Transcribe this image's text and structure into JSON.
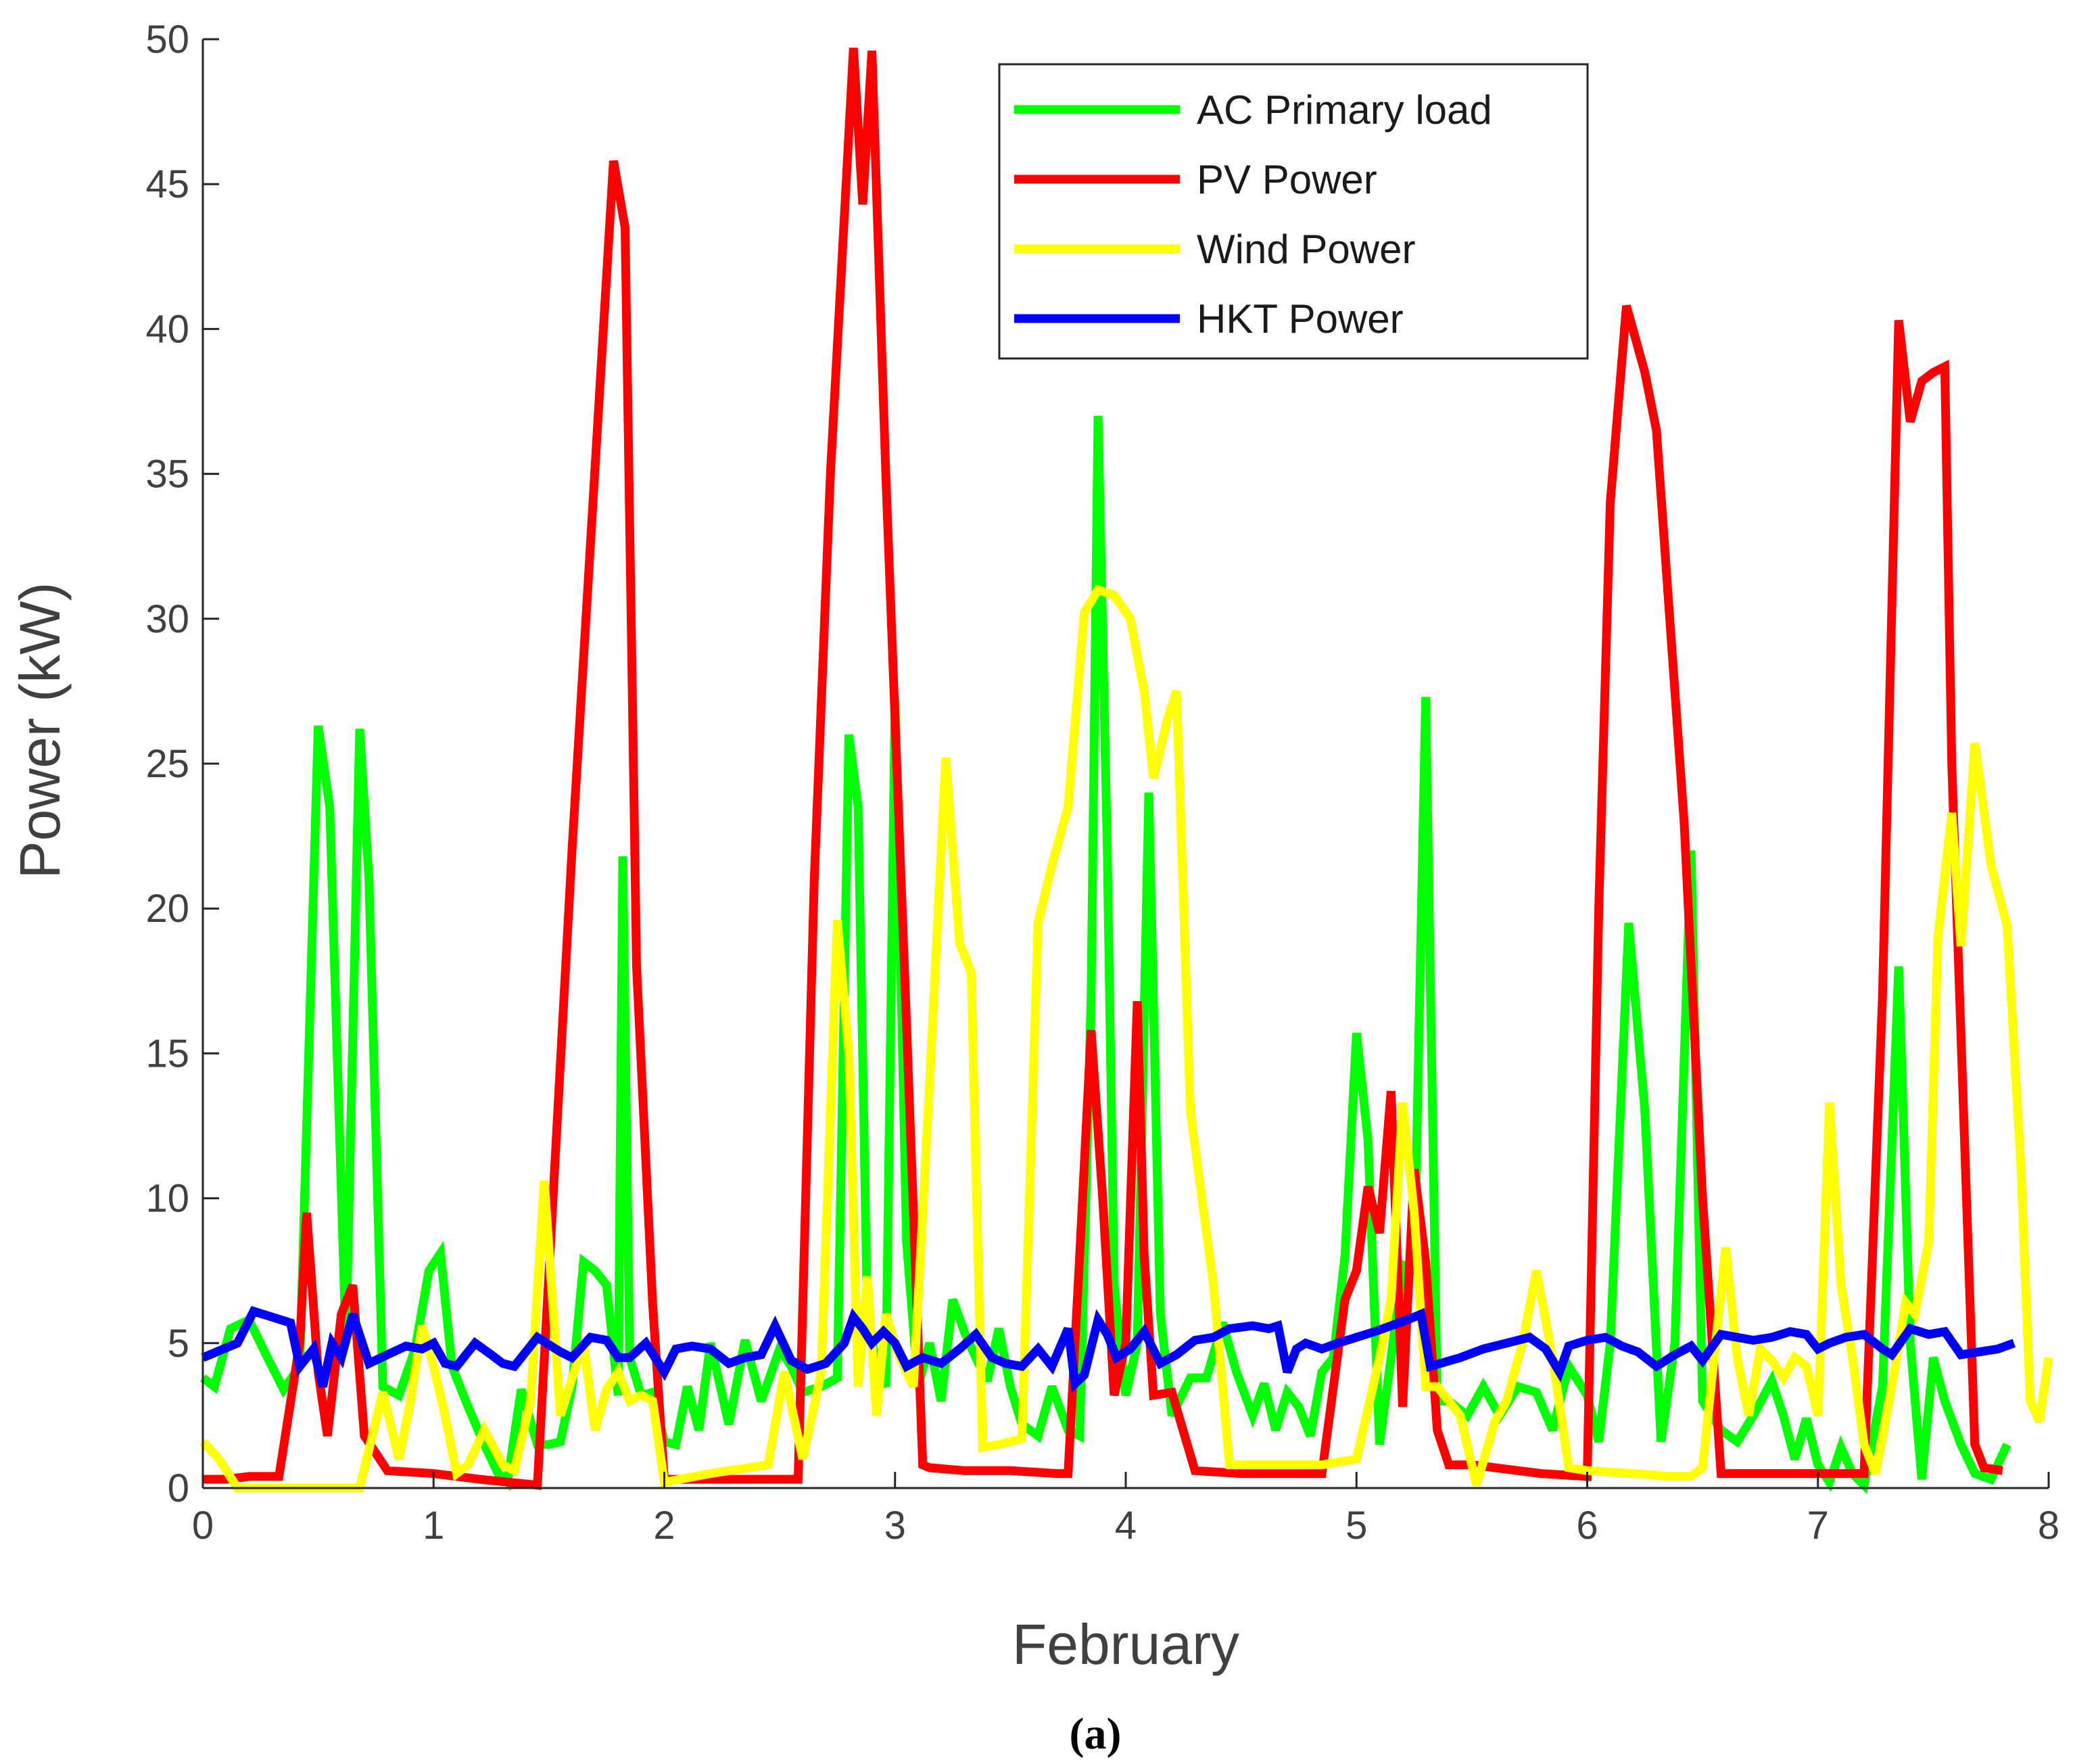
{
  "chart_data": {
    "type": "line",
    "title": "",
    "xlabel": "February",
    "ylabel": "Power (kW)",
    "caption": "(a)",
    "xlim": [
      0,
      8
    ],
    "ylim": [
      0,
      50
    ],
    "xticks": [
      "0",
      "1",
      "2",
      "3",
      "4",
      "5",
      "6",
      "7",
      "8"
    ],
    "yticks": [
      "0",
      "5",
      "10",
      "15",
      "20",
      "25",
      "30",
      "35",
      "40",
      "45",
      "50"
    ],
    "legend_position": "top-right",
    "series": [
      {
        "name": "AC Primary load",
        "color": "#00ff00",
        "x": [
          0,
          0.05,
          0.12,
          0.2,
          0.28,
          0.35,
          0.42,
          0.5,
          0.55,
          0.62,
          0.68,
          0.72,
          0.78,
          0.85,
          0.92,
          0.98,
          1.03,
          1.08,
          1.15,
          1.22,
          1.28,
          1.32,
          1.38,
          1.45,
          1.5,
          1.55,
          1.6,
          1.65,
          1.7,
          1.75,
          1.8,
          1.82,
          1.85,
          1.9,
          1.95,
          2.0,
          2.05,
          2.1,
          2.15,
          2.2,
          2.28,
          2.35,
          2.42,
          2.5,
          2.55,
          2.6,
          2.68,
          2.75,
          2.8,
          2.84,
          2.88,
          2.92,
          2.96,
          3.0,
          3.05,
          3.1,
          3.15,
          3.2,
          3.25,
          3.3,
          3.35,
          3.4,
          3.45,
          3.5,
          3.55,
          3.62,
          3.68,
          3.75,
          3.8,
          3.85,
          3.88,
          3.92,
          3.95,
          4.0,
          4.05,
          4.1,
          4.15,
          4.2,
          4.28,
          4.35,
          4.42,
          4.48,
          4.55,
          4.6,
          4.65,
          4.7,
          4.75,
          4.8,
          4.85,
          4.9,
          4.95,
          5.0,
          5.05,
          5.1,
          5.15,
          5.2,
          5.25,
          5.3,
          5.35,
          5.4,
          5.48,
          5.55,
          5.62,
          5.7,
          5.78,
          5.85,
          5.92,
          6.0,
          6.05,
          6.1,
          6.18,
          6.25,
          6.32,
          6.38,
          6.45,
          6.5,
          6.58,
          6.65,
          6.72,
          6.8,
          6.85,
          6.9,
          6.95,
          7.0,
          7.05,
          7.1,
          7.15,
          7.2,
          7.28,
          7.35,
          7.4,
          7.45,
          7.5,
          7.55,
          7.62,
          7.68,
          7.75,
          7.82
        ],
        "values": [
          3.8,
          3.5,
          5.5,
          5.8,
          4.5,
          3.4,
          4.2,
          26.3,
          23.5,
          5.0,
          26.2,
          21.0,
          3.5,
          3.2,
          4.8,
          7.5,
          8.1,
          4.2,
          2.8,
          1.5,
          0.5,
          0.2,
          3.4,
          1.5,
          1.5,
          1.6,
          3.5,
          7.8,
          7.5,
          7.0,
          3.2,
          21.8,
          4.5,
          3.2,
          3.3,
          1.6,
          1.5,
          3.5,
          2.0,
          5.0,
          2.2,
          5.1,
          3.0,
          4.8,
          4.2,
          3.3,
          3.5,
          3.8,
          26.0,
          23.5,
          6.0,
          4.2,
          3.5,
          27.2,
          8.5,
          3.5,
          5.0,
          3.0,
          6.5,
          5.4,
          4.5,
          3.7,
          5.5,
          3.5,
          2.2,
          1.8,
          3.5,
          2.0,
          1.8,
          17.0,
          37.0,
          22.0,
          7.0,
          3.2,
          5.0,
          24.0,
          6.0,
          2.5,
          3.8,
          3.8,
          5.7,
          4.0,
          2.5,
          3.6,
          2.0,
          3.3,
          2.8,
          1.8,
          4.0,
          4.5,
          8.0,
          15.7,
          12.0,
          1.5,
          4.5,
          7.7,
          7.5,
          27.3,
          3.0,
          3.0,
          2.5,
          3.5,
          2.5,
          3.5,
          3.3,
          2.0,
          4.2,
          3.2,
          1.6,
          5.0,
          19.5,
          13.0,
          1.6,
          5.0,
          22.0,
          3.0,
          2.0,
          1.6,
          2.5,
          3.7,
          2.5,
          1.0,
          2.4,
          0.8,
          0.2,
          1.4,
          0.5,
          0.1,
          3.5,
          18.0,
          5.0,
          0.3,
          4.5,
          3.0,
          1.5,
          0.5,
          0.3,
          1.5
        ]
      },
      {
        "name": "PV Power",
        "color": "#ff0000",
        "x": [
          0,
          0.1,
          0.2,
          0.33,
          0.42,
          0.45,
          0.5,
          0.54,
          0.6,
          0.65,
          0.7,
          0.8,
          1.0,
          1.2,
          1.45,
          1.6,
          1.78,
          1.83,
          1.88,
          1.95,
          2.0,
          2.2,
          2.4,
          2.58,
          2.65,
          2.72,
          2.82,
          2.86,
          2.9,
          2.96,
          3.05,
          3.12,
          3.15,
          3.3,
          3.5,
          3.7,
          3.75,
          3.8,
          3.85,
          3.9,
          3.95,
          4.0,
          4.05,
          4.08,
          4.12,
          4.2,
          4.3,
          4.5,
          4.7,
          4.85,
          4.95,
          5.0,
          5.05,
          5.1,
          5.15,
          5.2,
          5.25,
          5.3,
          5.35,
          5.4,
          5.5,
          5.8,
          6.0,
          6.05,
          6.1,
          6.17,
          6.25,
          6.3,
          6.42,
          6.5,
          6.58,
          6.7,
          6.9,
          7.1,
          7.2,
          7.28,
          7.35,
          7.4,
          7.45,
          7.5,
          7.55,
          7.58,
          7.68,
          7.72,
          7.8
        ],
        "values": [
          0.3,
          0.3,
          0.4,
          0.4,
          5.0,
          9.5,
          4.0,
          1.8,
          6.0,
          7.0,
          1.8,
          0.6,
          0.5,
          0.3,
          0.1,
          22.0,
          45.8,
          43.5,
          18.0,
          6.3,
          0.3,
          0.3,
          0.3,
          0.3,
          21.0,
          35.0,
          49.7,
          44.3,
          49.6,
          35.0,
          16.0,
          0.8,
          0.7,
          0.6,
          0.6,
          0.5,
          0.5,
          8.0,
          15.8,
          10.0,
          3.2,
          5.0,
          16.8,
          8.0,
          3.2,
          3.3,
          0.6,
          0.5,
          0.5,
          0.5,
          6.5,
          7.5,
          10.4,
          8.8,
          13.7,
          2.8,
          11.0,
          7.8,
          2.0,
          0.8,
          0.8,
          0.5,
          0.4,
          20.0,
          34.0,
          40.8,
          38.5,
          36.5,
          23.0,
          10.0,
          0.5,
          0.5,
          0.5,
          0.5,
          0.5,
          17.0,
          40.3,
          36.8,
          38.2,
          38.5,
          38.7,
          25.0,
          1.5,
          0.7,
          0.6
        ]
      },
      {
        "name": "Wind Power",
        "color": "#ffff00",
        "x": [
          0,
          0.07,
          0.15,
          0.3,
          0.5,
          0.68,
          0.78,
          0.85,
          0.9,
          0.95,
          1.0,
          1.05,
          1.1,
          1.15,
          1.22,
          1.3,
          1.35,
          1.42,
          1.48,
          1.55,
          1.6,
          1.65,
          1.7,
          1.75,
          1.8,
          1.85,
          1.9,
          1.95,
          2.0,
          2.2,
          2.45,
          2.52,
          2.6,
          2.68,
          2.75,
          2.8,
          2.84,
          2.88,
          2.92,
          2.96,
          3.02,
          3.08,
          3.15,
          3.22,
          3.28,
          3.33,
          3.38,
          3.45,
          3.5,
          3.55,
          3.62,
          3.68,
          3.75,
          3.82,
          3.88,
          3.95,
          4.02,
          4.08,
          4.12,
          4.18,
          4.22,
          4.28,
          4.38,
          4.45,
          4.55,
          4.7,
          4.85,
          5.0,
          5.1,
          5.15,
          5.2,
          5.25,
          5.3,
          5.35,
          5.45,
          5.52,
          5.6,
          5.65,
          5.72,
          5.78,
          5.85,
          5.92,
          6.0,
          6.2,
          6.35,
          6.45,
          6.5,
          6.55,
          6.6,
          6.65,
          6.7,
          6.75,
          6.8,
          6.85,
          6.9,
          6.95,
          7.0,
          7.05,
          7.1,
          7.15,
          7.2,
          7.25,
          7.32,
          7.38,
          7.42,
          7.48,
          7.52,
          7.58,
          7.62,
          7.68,
          7.75,
          7.82,
          7.88,
          7.92,
          7.96,
          8.0
        ],
        "values": [
          1.6,
          1.0,
          0.0,
          0.0,
          0.0,
          0.0,
          3.3,
          1.0,
          3.0,
          5.6,
          4.2,
          2.5,
          0.5,
          0.8,
          2.0,
          0.8,
          0.6,
          3.0,
          10.6,
          2.5,
          3.8,
          5.0,
          2.0,
          3.4,
          4.0,
          3.0,
          3.2,
          3.0,
          0.2,
          0.5,
          0.8,
          4.0,
          1.0,
          4.0,
          19.6,
          15.0,
          3.5,
          7.3,
          2.5,
          6.0,
          4.5,
          3.5,
          14.0,
          25.2,
          18.8,
          17.8,
          1.4,
          1.5,
          1.6,
          1.7,
          19.5,
          21.5,
          23.5,
          30.2,
          31.0,
          30.8,
          30.0,
          27.5,
          24.5,
          26.5,
          27.5,
          13.0,
          7.0,
          0.8,
          0.8,
          0.8,
          0.8,
          1.0,
          4.5,
          6.5,
          13.3,
          9.5,
          3.5,
          3.5,
          2.5,
          0.1,
          2.3,
          3.0,
          5.0,
          7.5,
          4.5,
          0.7,
          0.6,
          0.5,
          0.4,
          0.4,
          0.7,
          4.5,
          8.3,
          4.5,
          2.5,
          4.8,
          4.4,
          3.8,
          4.5,
          4.2,
          2.5,
          13.3,
          7.0,
          4.5,
          1.5,
          0.5,
          3.5,
          6.4,
          6.0,
          8.5,
          19.0,
          23.3,
          18.7,
          25.7,
          21.5,
          19.4,
          11.0,
          3.0,
          2.3,
          4.5
        ]
      },
      {
        "name": "HKT Power",
        "color": "#0000ff",
        "x": [
          0,
          0.15,
          0.22,
          0.3,
          0.38,
          0.42,
          0.48,
          0.52,
          0.56,
          0.6,
          0.65,
          0.72,
          0.8,
          0.88,
          0.95,
          1.0,
          1.05,
          1.1,
          1.18,
          1.25,
          1.3,
          1.35,
          1.45,
          1.55,
          1.6,
          1.68,
          1.75,
          1.8,
          1.85,
          1.92,
          2.0,
          2.05,
          2.12,
          2.2,
          2.28,
          2.35,
          2.42,
          2.48,
          2.55,
          2.62,
          2.7,
          2.78,
          2.82,
          2.86,
          2.9,
          2.95,
          3.0,
          3.05,
          3.12,
          3.2,
          3.28,
          3.35,
          3.42,
          3.48,
          3.55,
          3.62,
          3.68,
          3.75,
          3.78,
          3.82,
          3.88,
          3.92,
          3.96,
          4.02,
          4.08,
          4.15,
          4.22,
          4.3,
          4.38,
          4.45,
          4.55,
          4.62,
          4.66,
          4.7,
          4.74,
          4.78,
          4.85,
          4.92,
          5.0,
          5.08,
          5.15,
          5.22,
          5.28,
          5.32,
          5.45,
          5.55,
          5.65,
          5.75,
          5.82,
          5.88,
          5.92,
          6.0,
          6.08,
          6.15,
          6.22,
          6.3,
          6.38,
          6.45,
          6.5,
          6.58,
          6.65,
          6.72,
          6.8,
          6.88,
          6.95,
          7.0,
          7.05,
          7.12,
          7.2,
          7.28,
          7.32,
          7.4,
          7.48,
          7.55,
          7.62,
          7.7,
          7.78,
          7.85
        ],
        "values": [
          4.5,
          5.0,
          6.1,
          5.9,
          5.7,
          4.2,
          4.8,
          3.5,
          5.0,
          4.5,
          6.0,
          4.3,
          4.6,
          4.9,
          4.8,
          5.0,
          4.3,
          4.2,
          5.0,
          4.6,
          4.3,
          4.2,
          5.2,
          4.7,
          4.5,
          5.2,
          5.1,
          4.5,
          4.5,
          5.0,
          4.0,
          4.8,
          4.9,
          4.8,
          4.3,
          4.5,
          4.6,
          5.6,
          4.4,
          4.1,
          4.3,
          5.0,
          5.9,
          5.5,
          5.0,
          5.4,
          5.0,
          4.2,
          4.5,
          4.3,
          4.8,
          5.3,
          4.5,
          4.3,
          4.2,
          4.8,
          4.2,
          5.5,
          3.6,
          3.9,
          5.8,
          5.3,
          4.5,
          4.8,
          5.4,
          4.3,
          4.6,
          5.1,
          5.2,
          5.5,
          5.6,
          5.5,
          5.6,
          4.0,
          4.8,
          5.0,
          4.8,
          5.0,
          5.2,
          5.4,
          5.6,
          5.8,
          6.0,
          4.2,
          4.5,
          4.8,
          5.0,
          5.2,
          4.8,
          4.0,
          4.9,
          5.1,
          5.2,
          4.9,
          4.7,
          4.2,
          4.6,
          4.9,
          4.4,
          5.3,
          5.2,
          5.1,
          5.2,
          5.4,
          5.3,
          4.8,
          5.0,
          5.2,
          5.3,
          4.8,
          4.6,
          5.5,
          5.3,
          5.4,
          4.6,
          4.7,
          4.8,
          5.0
        ]
      }
    ]
  }
}
